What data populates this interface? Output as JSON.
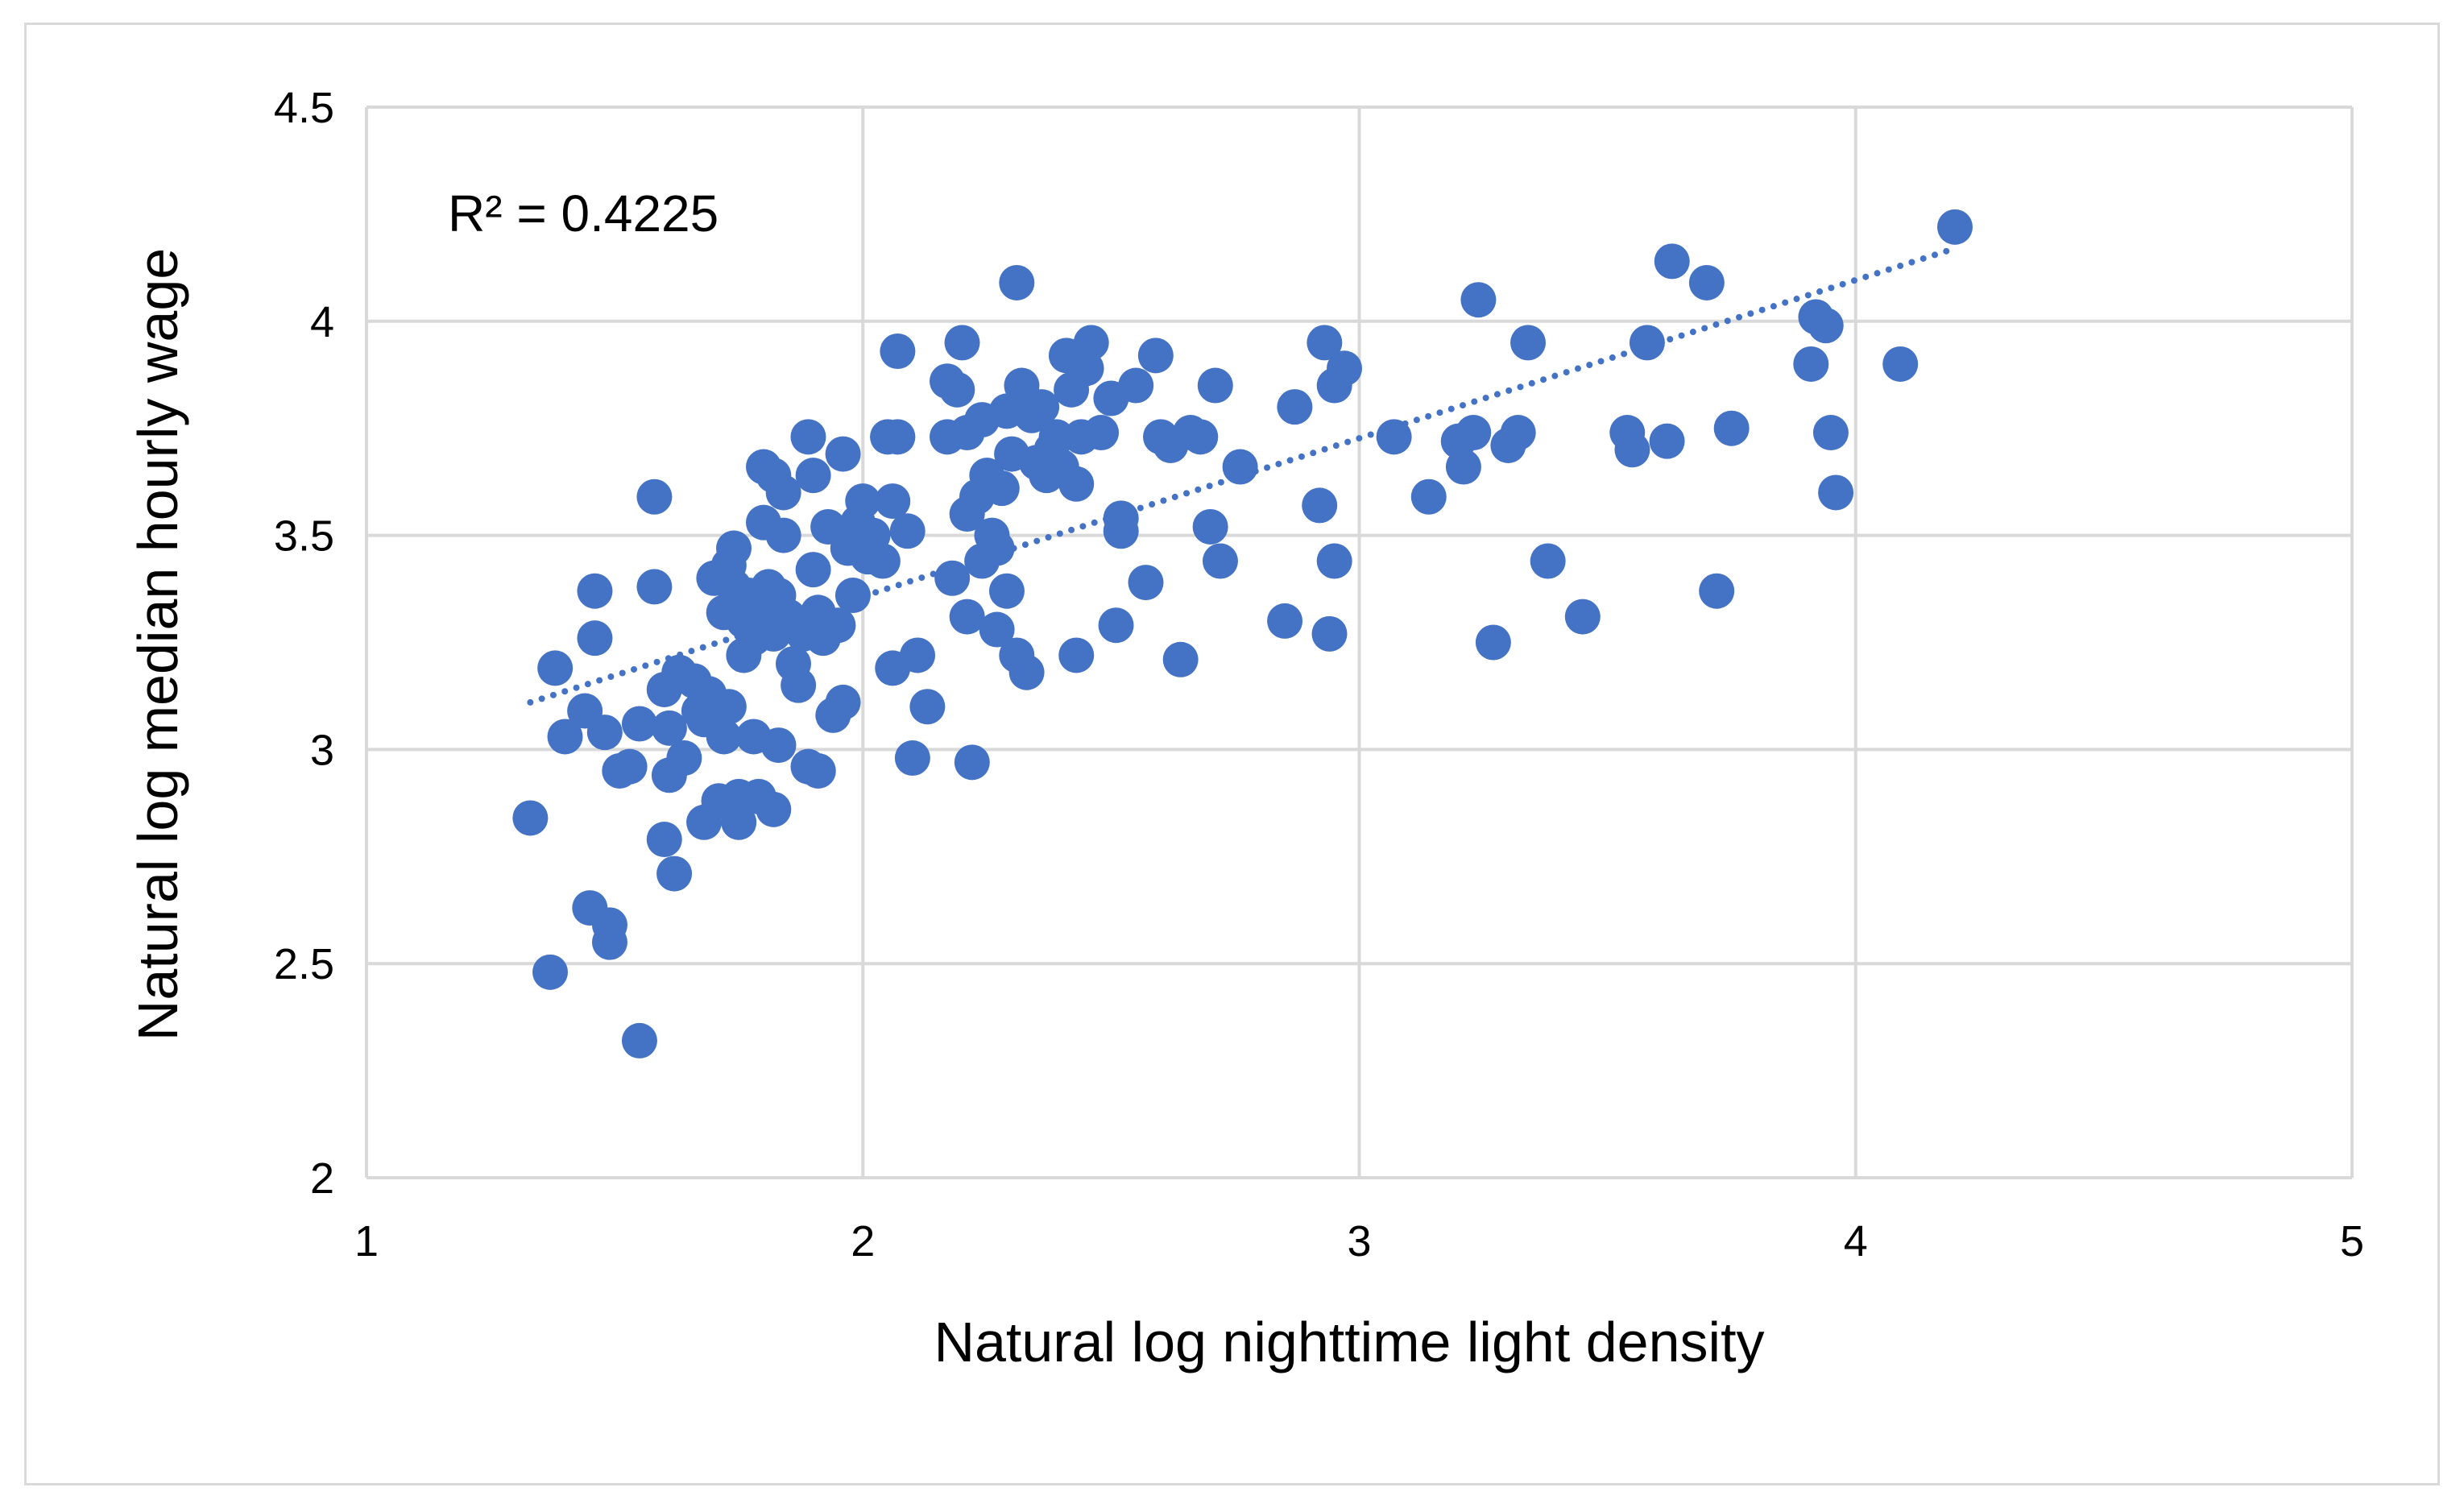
{
  "chart_data": {
    "type": "scatter",
    "title": "",
    "xlabel": "Natural log nighttime light density",
    "ylabel": "Natural log median hourly wage",
    "xlim": [
      1,
      5
    ],
    "ylim": [
      2,
      4.5
    ],
    "x_ticks": [
      "1",
      "2",
      "3",
      "4",
      "5"
    ],
    "y_ticks": [
      "2",
      "2.5",
      "3",
      "3.5",
      "4",
      "4.5"
    ],
    "grid": true,
    "legend": "none",
    "annotation": "R² = 0.4225",
    "trendline": {
      "type": "linear",
      "style": "dotted",
      "x": [
        1.33,
        4.2
      ],
      "y": [
        3.11,
        4.17
      ]
    },
    "marker_color": "#4472c4",
    "trend_color": "#4472c4",
    "grid_color": "#d9d9d9",
    "series": [
      {
        "points": [
          [
            1.33,
            2.84
          ],
          [
            1.37,
            2.48
          ],
          [
            1.38,
            3.19
          ],
          [
            1.4,
            3.03
          ],
          [
            1.44,
            3.09
          ],
          [
            1.45,
            2.63
          ],
          [
            1.46,
            3.37
          ],
          [
            1.46,
            3.26
          ],
          [
            1.48,
            3.04
          ],
          [
            1.49,
            2.59
          ],
          [
            1.49,
            2.55
          ],
          [
            1.51,
            2.95
          ],
          [
            1.53,
            2.96
          ],
          [
            1.55,
            2.32
          ],
          [
            1.55,
            3.06
          ],
          [
            1.58,
            3.59
          ],
          [
            1.58,
            3.38
          ],
          [
            1.6,
            3.14
          ],
          [
            1.6,
            2.79
          ],
          [
            1.61,
            3.05
          ],
          [
            1.61,
            2.94
          ],
          [
            1.62,
            2.71
          ],
          [
            1.63,
            3.18
          ],
          [
            1.64,
            2.98
          ],
          [
            1.66,
            3.16
          ],
          [
            1.67,
            3.09
          ],
          [
            1.68,
            3.07
          ],
          [
            1.68,
            2.83
          ],
          [
            1.69,
            3.13
          ],
          [
            1.7,
            3.4
          ],
          [
            1.71,
            2.88
          ],
          [
            1.72,
            3.32
          ],
          [
            1.72,
            3.03
          ],
          [
            1.73,
            3.43
          ],
          [
            1.73,
            3.1
          ],
          [
            1.74,
            3.47
          ],
          [
            1.74,
            3.38
          ],
          [
            1.75,
            2.89
          ],
          [
            1.75,
            2.83
          ],
          [
            1.76,
            3.3
          ],
          [
            1.76,
            3.22
          ],
          [
            1.77,
            3.36
          ],
          [
            1.78,
            3.26
          ],
          [
            1.78,
            3.03
          ],
          [
            1.79,
            3.33
          ],
          [
            1.79,
            2.89
          ],
          [
            1.8,
            3.66
          ],
          [
            1.8,
            3.53
          ],
          [
            1.81,
            3.38
          ],
          [
            1.82,
            3.64
          ],
          [
            1.82,
            3.27
          ],
          [
            1.82,
            2.86
          ],
          [
            1.83,
            3.36
          ],
          [
            1.83,
            3.01
          ],
          [
            1.84,
            3.6
          ],
          [
            1.84,
            3.5
          ],
          [
            1.85,
            3.31
          ],
          [
            1.86,
            3.2
          ],
          [
            1.87,
            3.15
          ],
          [
            1.88,
            3.27
          ],
          [
            1.89,
            3.73
          ],
          [
            1.89,
            2.96
          ],
          [
            1.9,
            3.64
          ],
          [
            1.9,
            3.42
          ],
          [
            1.91,
            3.32
          ],
          [
            1.91,
            2.95
          ],
          [
            1.92,
            3.26
          ],
          [
            1.93,
            3.52
          ],
          [
            1.94,
            3.08
          ],
          [
            1.95,
            3.29
          ],
          [
            1.96,
            3.69
          ],
          [
            1.96,
            3.11
          ],
          [
            1.97,
            3.47
          ],
          [
            1.98,
            3.36
          ],
          [
            1.99,
            3.53
          ],
          [
            2.0,
            3.58
          ],
          [
            2.01,
            3.45
          ],
          [
            2.02,
            3.5
          ],
          [
            2.04,
            3.44
          ],
          [
            2.05,
            3.73
          ],
          [
            2.06,
            3.58
          ],
          [
            2.06,
            3.19
          ],
          [
            2.07,
            3.93
          ],
          [
            2.07,
            3.73
          ],
          [
            2.09,
            3.51
          ],
          [
            2.1,
            2.98
          ],
          [
            2.11,
            3.22
          ],
          [
            2.13,
            3.1
          ],
          [
            2.17,
            3.86
          ],
          [
            2.17,
            3.73
          ],
          [
            2.18,
            3.4
          ],
          [
            2.19,
            3.84
          ],
          [
            2.2,
            3.95
          ],
          [
            2.21,
            3.74
          ],
          [
            2.21,
            3.55
          ],
          [
            2.21,
            3.31
          ],
          [
            2.22,
            2.97
          ],
          [
            2.23,
            3.59
          ],
          [
            2.24,
            3.77
          ],
          [
            2.24,
            3.44
          ],
          [
            2.25,
            3.64
          ],
          [
            2.26,
            3.5
          ],
          [
            2.27,
            3.47
          ],
          [
            2.27,
            3.28
          ],
          [
            2.28,
            3.61
          ],
          [
            2.29,
            3.79
          ],
          [
            2.29,
            3.37
          ],
          [
            2.3,
            3.69
          ],
          [
            2.31,
            4.09
          ],
          [
            2.31,
            3.22
          ],
          [
            2.32,
            3.85
          ],
          [
            2.33,
            3.18
          ],
          [
            2.34,
            3.78
          ],
          [
            2.35,
            3.67
          ],
          [
            2.36,
            3.8
          ],
          [
            2.37,
            3.64
          ],
          [
            2.38,
            3.7
          ],
          [
            2.39,
            3.73
          ],
          [
            2.4,
            3.66
          ],
          [
            2.41,
            3.92
          ],
          [
            2.42,
            3.84
          ],
          [
            2.43,
            3.62
          ],
          [
            2.43,
            3.22
          ],
          [
            2.44,
            3.73
          ],
          [
            2.45,
            3.89
          ],
          [
            2.46,
            3.95
          ],
          [
            2.48,
            3.74
          ],
          [
            2.5,
            3.82
          ],
          [
            2.51,
            3.29
          ],
          [
            2.52,
            3.54
          ],
          [
            2.52,
            3.51
          ],
          [
            2.55,
            3.85
          ],
          [
            2.57,
            3.39
          ],
          [
            2.59,
            3.92
          ],
          [
            2.6,
            3.73
          ],
          [
            2.62,
            3.71
          ],
          [
            2.64,
            3.21
          ],
          [
            2.66,
            3.74
          ],
          [
            2.68,
            3.73
          ],
          [
            2.7,
            3.52
          ],
          [
            2.71,
            3.85
          ],
          [
            2.72,
            3.44
          ],
          [
            2.76,
            3.66
          ],
          [
            2.85,
            3.3
          ],
          [
            2.87,
            3.8
          ],
          [
            2.92,
            3.57
          ],
          [
            2.93,
            3.95
          ],
          [
            2.94,
            3.27
          ],
          [
            2.95,
            3.85
          ],
          [
            2.95,
            3.44
          ],
          [
            2.97,
            3.89
          ],
          [
            3.07,
            3.73
          ],
          [
            3.14,
            3.59
          ],
          [
            3.2,
            3.72
          ],
          [
            3.21,
            3.66
          ],
          [
            3.23,
            3.74
          ],
          [
            3.24,
            4.05
          ],
          [
            3.27,
            3.25
          ],
          [
            3.3,
            3.71
          ],
          [
            3.32,
            3.74
          ],
          [
            3.34,
            3.95
          ],
          [
            3.38,
            3.44
          ],
          [
            3.45,
            3.31
          ],
          [
            3.54,
            3.74
          ],
          [
            3.55,
            3.7
          ],
          [
            3.58,
            3.95
          ],
          [
            3.62,
            3.72
          ],
          [
            3.63,
            4.14
          ],
          [
            3.7,
            4.09
          ],
          [
            3.72,
            3.37
          ],
          [
            3.75,
            3.75
          ],
          [
            3.91,
            3.9
          ],
          [
            3.92,
            4.01
          ],
          [
            3.94,
            3.99
          ],
          [
            3.95,
            3.74
          ],
          [
            3.96,
            3.6
          ],
          [
            4.09,
            3.9
          ],
          [
            4.2,
            4.22
          ]
        ]
      }
    ]
  }
}
